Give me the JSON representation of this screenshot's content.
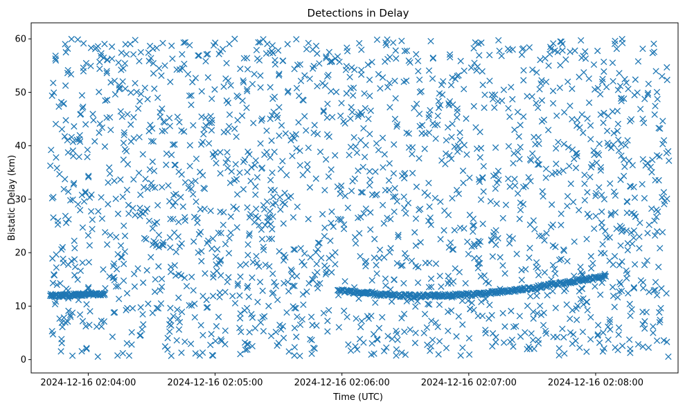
{
  "chart_data": {
    "type": "scatter",
    "title": "Detections in Delay",
    "xlabel": "Time (UTC)",
    "ylabel": "Bistatic Delay (km)",
    "marker": "x",
    "color": "#1f77b4",
    "grid": false,
    "legend": "none",
    "xlim": [
      "2024-12-16 02:03:33",
      "2024-12-16 02:08:39"
    ],
    "ylim": [
      -2.5,
      63
    ],
    "x_ticks": [
      "2024-12-16 02:04:00",
      "2024-12-16 02:05:00",
      "2024-12-16 02:06:00",
      "2024-12-16 02:07:00",
      "2024-12-16 02:08:00"
    ],
    "y_ticks": [
      "0",
      "10",
      "20",
      "30",
      "40",
      "50",
      "60"
    ],
    "tracks": [
      {
        "t_start": "2024-12-16 02:03:42",
        "t_end": "2024-12-16 02:04:08",
        "delay": [
          12.0,
          12.0,
          12.1,
          12.3,
          12.2
        ],
        "step_s": 0.3
      },
      {
        "t_start": "2024-12-16 02:05:58",
        "t_end": "2024-12-16 02:08:05",
        "delay": [
          13.0,
          12.4,
          12.0,
          11.9,
          12.0,
          12.2,
          12.6,
          13.2,
          14.0,
          14.8,
          15.5
        ],
        "step_s": 0.4
      }
    ],
    "clutter": {
      "x_range": [
        "2024-12-16 02:03:42",
        "2024-12-16 02:08:35"
      ],
      "y_range": [
        0.5,
        60
      ],
      "count": 1900
    }
  }
}
